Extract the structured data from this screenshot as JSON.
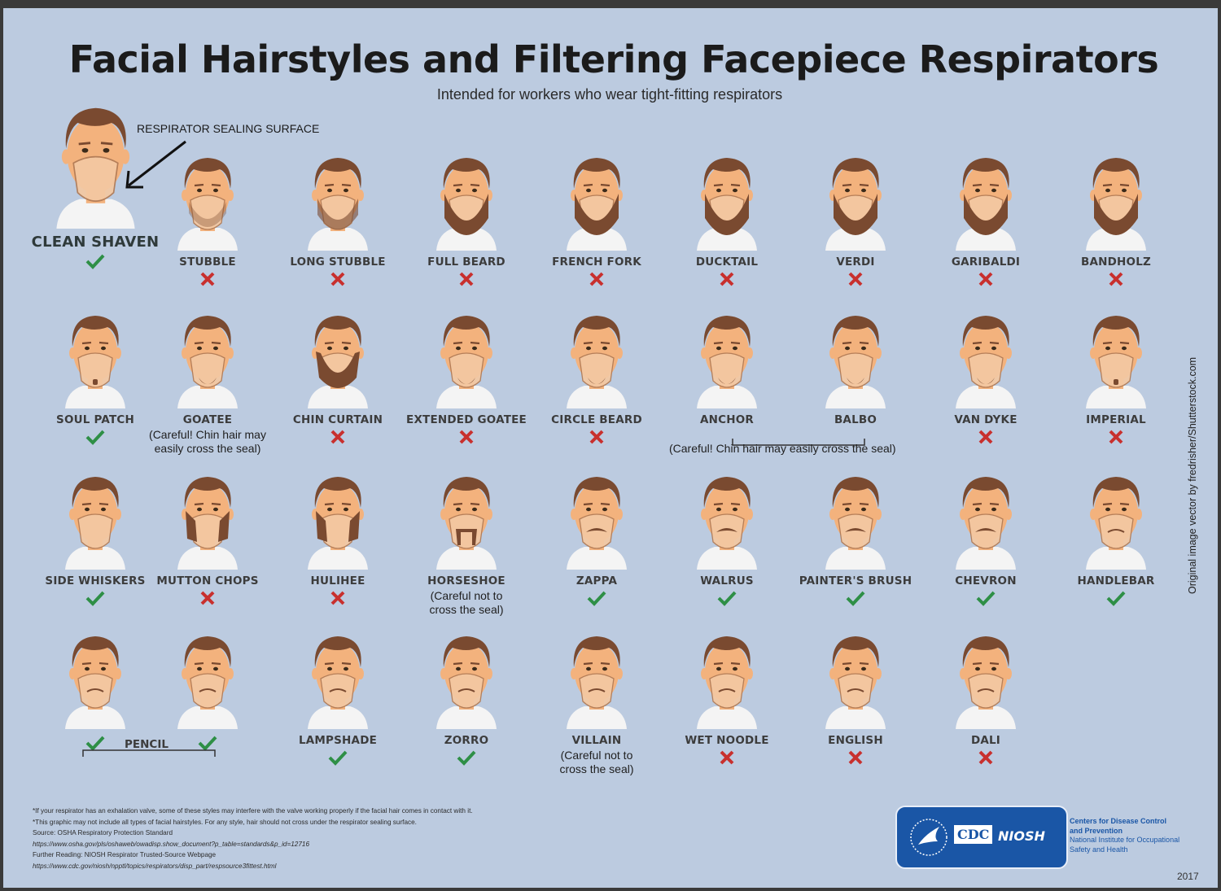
{
  "title": "Facial Hairstyles and Filtering Facepiece Respirators",
  "subtitle": "Intended for workers who wear tight-fitting respirators",
  "callout": "RESPIRATOR SEALING SURFACE",
  "colors": {
    "background": "#bccbe0",
    "skin": "#f3b27d",
    "hair": "#7a4a30",
    "mask": "#f4c8a2",
    "check": "#2e8f46",
    "cross": "#c8302e",
    "logo_blue": "#1a56a6"
  },
  "styles": [
    {
      "name": "CLEAN SHAVEN",
      "ok": true,
      "beard": "none"
    },
    {
      "name": "STUBBLE",
      "ok": false,
      "beard": "stubble"
    },
    {
      "name": "LONG STUBBLE",
      "ok": false,
      "beard": "longstubble"
    },
    {
      "name": "FULL BEARD",
      "ok": false,
      "beard": "full"
    },
    {
      "name": "FRENCH FORK",
      "ok": false,
      "beard": "full"
    },
    {
      "name": "DUCKTAIL",
      "ok": false,
      "beard": "full"
    },
    {
      "name": "VERDI",
      "ok": false,
      "beard": "full"
    },
    {
      "name": "GARIBALDI",
      "ok": false,
      "beard": "full"
    },
    {
      "name": "BANDHOLZ",
      "ok": false,
      "beard": "full"
    },
    {
      "name": "SOUL PATCH",
      "ok": true,
      "beard": "soul"
    },
    {
      "name": "GOATEE",
      "ok": null,
      "beard": "goatee",
      "note": "(Careful! Chin hair may\neasily cross the seal)"
    },
    {
      "name": "CHIN CURTAIN",
      "ok": false,
      "beard": "curtain"
    },
    {
      "name": "EXTENDED GOATEE",
      "ok": false,
      "beard": "goatee"
    },
    {
      "name": "CIRCLE BEARD",
      "ok": false,
      "beard": "goatee"
    },
    {
      "name": "ANCHOR",
      "ok": null,
      "beard": "goatee"
    },
    {
      "name": "BALBO",
      "ok": null,
      "beard": "goatee"
    },
    {
      "name": "VAN DYKE",
      "ok": false,
      "beard": "goatee"
    },
    {
      "name": "IMPERIAL",
      "ok": false,
      "beard": "soul"
    },
    {
      "name": "SIDE WHISKERS",
      "ok": true,
      "beard": "none"
    },
    {
      "name": "MUTTON CHOPS",
      "ok": false,
      "beard": "chops"
    },
    {
      "name": "HULIHEE",
      "ok": false,
      "beard": "chops"
    },
    {
      "name": "HORSESHOE",
      "ok": null,
      "beard": "horseshoe",
      "note": "(Careful not to\ncross the seal)"
    },
    {
      "name": "ZAPPA",
      "ok": true,
      "beard": "mustache"
    },
    {
      "name": "WALRUS",
      "ok": true,
      "beard": "mustache"
    },
    {
      "name": "PAINTER'S BRUSH",
      "ok": true,
      "beard": "mustache"
    },
    {
      "name": "CHEVRON",
      "ok": true,
      "beard": "mustache"
    },
    {
      "name": "HANDLEBAR",
      "ok": true,
      "beard": "thinmustache"
    },
    {
      "name": "",
      "ok": true,
      "beard": "thinmustache"
    },
    {
      "name": "",
      "ok": true,
      "beard": "thinmustache"
    },
    {
      "name": "LAMPSHADE",
      "ok": true,
      "beard": "thinmustache"
    },
    {
      "name": "ZORRO",
      "ok": true,
      "beard": "thinmustache"
    },
    {
      "name": "VILLAIN",
      "ok": null,
      "beard": "thinmustache",
      "note": "(Careful not to\ncross the seal)"
    },
    {
      "name": "WET NOODLE",
      "ok": false,
      "beard": "thinmustache"
    },
    {
      "name": "ENGLISH",
      "ok": false,
      "beard": "thinmustache"
    },
    {
      "name": "DALI",
      "ok": false,
      "beard": "thinmustache"
    }
  ],
  "groups": {
    "pencil": "PENCIL",
    "anchor_balbo_note": "(Careful! Chin hair may easily cross the seal)"
  },
  "credit": "Original image vector by fredrisher/Shutterstock.com",
  "footnotes": [
    "*If your respirator has an exhalation valve, some of these styles may interfere with the valve working properly if the facial hair comes in contact with it.",
    "*This graphic may not include all types of facial hairstyles. For any style, hair should not cross under the respirator sealing surface.",
    "Source: OSHA Respiratory Protection Standard",
    "https://www.osha.gov/pls/oshaweb/owadisp.show_document?p_table=standards&p_id=12716",
    "Further Reading: NIOSH Respirator Trusted-Source Webpage",
    "https://www.cdc.gov/niosh/npptl/topics/respirators/disp_part/respsource3fittest.html"
  ],
  "logo": {
    "cdc": "CDC",
    "niosh": "NIOSH",
    "line1": "Centers for Disease Control",
    "line2": "and Prevention",
    "line3": "National Institute for Occupational",
    "line4": "Safety and Health"
  },
  "year": "2017"
}
